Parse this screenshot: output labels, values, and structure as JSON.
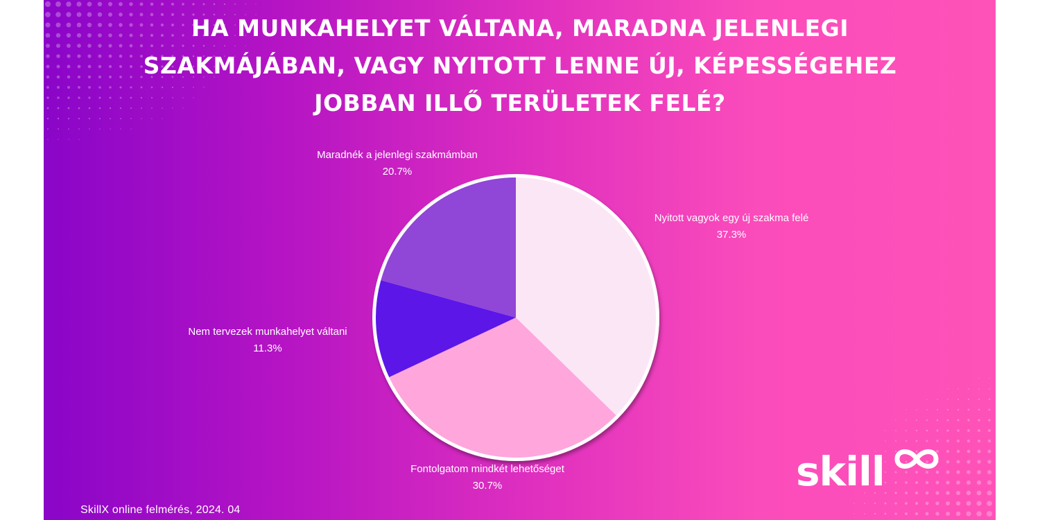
{
  "title": "HA MUNKAHELYET VÁLTANA, MARADNA JELENLEGI SZAKMÁJÁBAN, VAGY NYITOTT LENNE ÚJ, KÉPESSÉGEHEZ JOBBAN ILLŐ TERÜLETEK FELÉ?",
  "footer": "SkillX online felmérés, 2024. 04",
  "logo": {
    "text": "skill",
    "mark": "infinity-mark"
  },
  "colors": {
    "text": "#ffffff",
    "label_text": "#ffffff",
    "pie_border": "#ffffff"
  },
  "chart_data": {
    "type": "pie",
    "title": "HA MUNKAHELYET VÁLTANA, MARADNA JELENLEGI SZAKMÁJÁBAN, VAGY NYITOTT LENNE ÚJ, KÉPESSÉGEHEZ JOBBAN ILLŐ TERÜLETEK FELÉ?",
    "start": "12 o'clock",
    "direction": "clockwise",
    "slices": [
      {
        "label": "Nyitott vagyok egy új szakma felé",
        "value": 37.3,
        "value_label": "37.3%",
        "color": "#fbe6f6"
      },
      {
        "label": "Fontolgatom mindkét lehetőséget",
        "value": 30.7,
        "value_label": "30.7%",
        "color": "#ffa6dc"
      },
      {
        "label": "Nem tervezek munkahelyet váltani",
        "value": 11.3,
        "value_label": "11.3%",
        "color": "#5c16e8"
      },
      {
        "label": "Maradnék a jelenlegi szakmámban",
        "value": 20.7,
        "value_label": "20.7%",
        "color": "#9046d6"
      }
    ]
  }
}
